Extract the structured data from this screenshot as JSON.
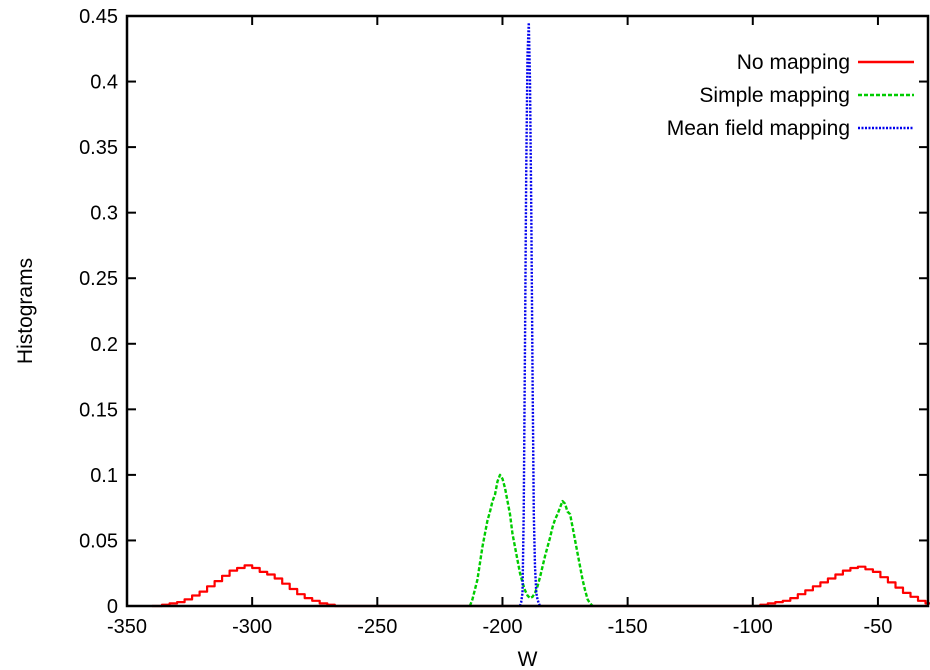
{
  "chart_data": {
    "type": "line",
    "title": "",
    "xlabel": "W",
    "ylabel": "Histograms",
    "xlim": [
      -350,
      -30
    ],
    "ylim": [
      0,
      0.45
    ],
    "xticks": [
      -350,
      -300,
      -250,
      -200,
      -150,
      -100,
      -50
    ],
    "xtick_labels": [
      "-350",
      "-300",
      "-250",
      "-200",
      "-150",
      "-100",
      "-50"
    ],
    "yticks": [
      0,
      0.05,
      0.1,
      0.15,
      0.2,
      0.25,
      0.3,
      0.35,
      0.4,
      0.45
    ],
    "ytick_labels": [
      "0",
      "0.05",
      "0.1",
      "0.15",
      "0.2",
      "0.25",
      "0.3",
      "0.35",
      "0.4",
      "0.45"
    ],
    "grid": false,
    "legend_position": "top-right",
    "series": [
      {
        "name": "No mapping",
        "color": "#ff0000",
        "style": "step",
        "x": [
          -340,
          -336,
          -333,
          -330,
          -327,
          -324,
          -321,
          -318,
          -315,
          -312,
          -309,
          -306,
          -303,
          -300,
          -297,
          -294,
          -291,
          -288,
          -285,
          -282,
          -279,
          -276,
          -273,
          -270,
          -267,
          -100,
          -97,
          -94,
          -91,
          -88,
          -85,
          -82,
          -79,
          -76,
          -73,
          -70,
          -67,
          -64,
          -61,
          -58,
          -55,
          -52,
          -49,
          -46,
          -43,
          -40,
          -37,
          -34,
          -31
        ],
        "y": [
          0,
          0.001,
          0.002,
          0.003,
          0.005,
          0.008,
          0.011,
          0.015,
          0.019,
          0.023,
          0.027,
          0.029,
          0.031,
          0.029,
          0.026,
          0.024,
          0.021,
          0.017,
          0.013,
          0.009,
          0.006,
          0.004,
          0.002,
          0.001,
          0,
          0,
          0.001,
          0.002,
          0.003,
          0.004,
          0.006,
          0.009,
          0.012,
          0.015,
          0.018,
          0.021,
          0.024,
          0.027,
          0.029,
          0.03,
          0.028,
          0.026,
          0.022,
          0.018,
          0.014,
          0.01,
          0.007,
          0.004,
          0.002
        ]
      },
      {
        "name": "Simple mapping",
        "color": "#00cc00",
        "style": "dashed",
        "x": [
          -213,
          -212,
          -210,
          -208,
          -206,
          -205,
          -204,
          -203,
          -202,
          -201,
          -200,
          -199,
          -198,
          -197,
          -196,
          -195,
          -194,
          -193,
          -192,
          -191,
          -190,
          -189,
          -188,
          -187,
          -186,
          -185,
          -184,
          -183,
          -182,
          -181,
          -180,
          -179,
          -178,
          -177,
          -176,
          -175,
          -174,
          -173,
          -172,
          -171,
          -170,
          -169,
          -168,
          -167,
          -166,
          -165,
          -164
        ],
        "y": [
          0,
          0.005,
          0.02,
          0.045,
          0.065,
          0.072,
          0.08,
          0.085,
          0.095,
          0.1,
          0.097,
          0.09,
          0.08,
          0.07,
          0.055,
          0.045,
          0.035,
          0.025,
          0.018,
          0.012,
          0.008,
          0.006,
          0.007,
          0.01,
          0.015,
          0.022,
          0.03,
          0.038,
          0.045,
          0.052,
          0.06,
          0.066,
          0.07,
          0.075,
          0.08,
          0.078,
          0.072,
          0.07,
          0.06,
          0.05,
          0.04,
          0.03,
          0.02,
          0.012,
          0.005,
          0.002,
          0
        ]
      },
      {
        "name": "Mean field mapping",
        "color": "#0000ee",
        "style": "dotted",
        "x": [
          -193,
          -192.5,
          -192,
          -191.5,
          -191,
          -190.5,
          -190,
          -189.5,
          -189,
          -188.5,
          -188,
          -187.5,
          -187,
          -186.5,
          -186,
          -185.5,
          -185
        ],
        "y": [
          0,
          0.003,
          0.01,
          0.07,
          0.2,
          0.33,
          0.42,
          0.445,
          0.4,
          0.3,
          0.18,
          0.07,
          0.03,
          0.01,
          0.005,
          0.002,
          0
        ]
      }
    ]
  }
}
